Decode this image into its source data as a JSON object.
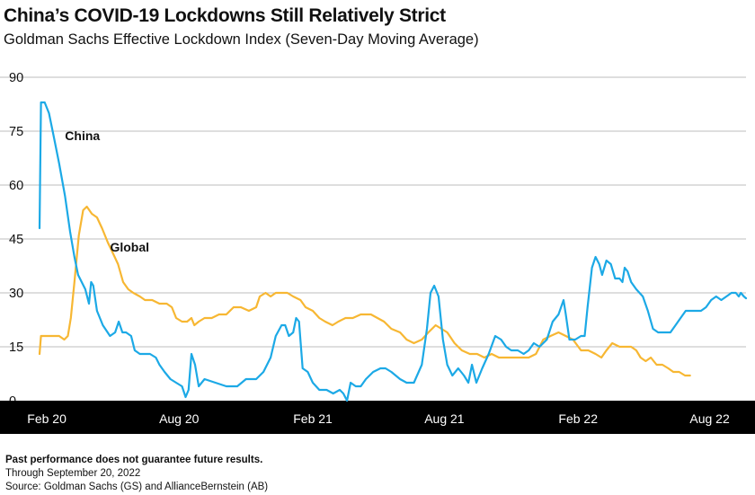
{
  "title": "China’s COVID-19 Lockdowns Still Relatively Strict",
  "subtitle": "Goldman Sachs Effective Lockdown Index (Seven-Day Moving Average)",
  "footer": {
    "disclaimer": "Past performance does not guarantee future results.",
    "through": "Through September 20, 2022",
    "source": "Source: Goldman Sachs (GS) and AllianceBernstein (AB)"
  },
  "colors": {
    "China": "#1ca9e6",
    "Global": "#f7b733",
    "axis_band": "#000000"
  },
  "chart_data": {
    "type": "line",
    "ylim": [
      0,
      90
    ],
    "yticks": [
      0,
      15,
      30,
      45,
      60,
      75,
      90
    ],
    "grid": true,
    "xlim": [
      "2020-01-22",
      "2022-09-20"
    ],
    "xticks": [
      {
        "label": "Feb 20",
        "date": "2020-02-01"
      },
      {
        "label": "Aug 20",
        "date": "2020-08-01"
      },
      {
        "label": "Feb 21",
        "date": "2021-02-01"
      },
      {
        "label": "Aug 21",
        "date": "2021-08-01"
      },
      {
        "label": "Feb 22",
        "date": "2022-02-01"
      },
      {
        "label": "Aug 22",
        "date": "2022-08-01"
      }
    ],
    "series": [
      {
        "name": "China",
        "points": [
          [
            "2020-01-22",
            48
          ],
          [
            "2020-01-24",
            83
          ],
          [
            "2020-01-29",
            83
          ],
          [
            "2020-02-04",
            80
          ],
          [
            "2020-02-10",
            74
          ],
          [
            "2020-02-18",
            66
          ],
          [
            "2020-02-26",
            57
          ],
          [
            "2020-03-04",
            47
          ],
          [
            "2020-03-10",
            40
          ],
          [
            "2020-03-15",
            35
          ],
          [
            "2020-03-20",
            33
          ],
          [
            "2020-03-25",
            31
          ],
          [
            "2020-03-30",
            27
          ],
          [
            "2020-04-02",
            33
          ],
          [
            "2020-04-05",
            32
          ],
          [
            "2020-04-10",
            25
          ],
          [
            "2020-04-18",
            21
          ],
          [
            "2020-04-28",
            18
          ],
          [
            "2020-05-05",
            19
          ],
          [
            "2020-05-10",
            22
          ],
          [
            "2020-05-15",
            19
          ],
          [
            "2020-05-20",
            19
          ],
          [
            "2020-05-27",
            18
          ],
          [
            "2020-06-01",
            14
          ],
          [
            "2020-06-08",
            13
          ],
          [
            "2020-06-16",
            13
          ],
          [
            "2020-06-22",
            13
          ],
          [
            "2020-06-30",
            12
          ],
          [
            "2020-07-05",
            10
          ],
          [
            "2020-07-12",
            8
          ],
          [
            "2020-07-20",
            6
          ],
          [
            "2020-07-28",
            5
          ],
          [
            "2020-08-05",
            4
          ],
          [
            "2020-08-10",
            1
          ],
          [
            "2020-08-14",
            3
          ],
          [
            "2020-08-18",
            13
          ],
          [
            "2020-08-23",
            10
          ],
          [
            "2020-08-28",
            4
          ],
          [
            "2020-09-05",
            6
          ],
          [
            "2020-09-20",
            5
          ],
          [
            "2020-10-05",
            4
          ],
          [
            "2020-10-20",
            4
          ],
          [
            "2020-11-01",
            6
          ],
          [
            "2020-11-15",
            6
          ],
          [
            "2020-11-25",
            8
          ],
          [
            "2020-12-05",
            12
          ],
          [
            "2020-12-12",
            18
          ],
          [
            "2020-12-20",
            21
          ],
          [
            "2020-12-25",
            21
          ],
          [
            "2020-12-30",
            18
          ],
          [
            "2021-01-05",
            19
          ],
          [
            "2021-01-09",
            23
          ],
          [
            "2021-01-13",
            22
          ],
          [
            "2021-01-18",
            9
          ],
          [
            "2021-01-25",
            8
          ],
          [
            "2021-02-01",
            5
          ],
          [
            "2021-02-10",
            3
          ],
          [
            "2021-02-20",
            3
          ],
          [
            "2021-03-01",
            2
          ],
          [
            "2021-03-10",
            3
          ],
          [
            "2021-03-15",
            2
          ],
          [
            "2021-03-20",
            0
          ],
          [
            "2021-03-25",
            5
          ],
          [
            "2021-04-01",
            4
          ],
          [
            "2021-04-08",
            4
          ],
          [
            "2021-04-15",
            6
          ],
          [
            "2021-04-25",
            8
          ],
          [
            "2021-05-05",
            9
          ],
          [
            "2021-05-12",
            9
          ],
          [
            "2021-05-20",
            8
          ],
          [
            "2021-06-01",
            6
          ],
          [
            "2021-06-10",
            5
          ],
          [
            "2021-06-20",
            5
          ],
          [
            "2021-07-01",
            10
          ],
          [
            "2021-07-08",
            20
          ],
          [
            "2021-07-13",
            30
          ],
          [
            "2021-07-18",
            32
          ],
          [
            "2021-07-24",
            29
          ],
          [
            "2021-07-30",
            17
          ],
          [
            "2021-08-05",
            10
          ],
          [
            "2021-08-12",
            7
          ],
          [
            "2021-08-20",
            9
          ],
          [
            "2021-08-28",
            7
          ],
          [
            "2021-09-03",
            5
          ],
          [
            "2021-09-08",
            10
          ],
          [
            "2021-09-14",
            5
          ],
          [
            "2021-09-22",
            9
          ],
          [
            "2021-10-01",
            13
          ],
          [
            "2021-10-10",
            18
          ],
          [
            "2021-10-18",
            17
          ],
          [
            "2021-10-25",
            15
          ],
          [
            "2021-11-01",
            14
          ],
          [
            "2021-11-10",
            14
          ],
          [
            "2021-11-18",
            13
          ],
          [
            "2021-11-25",
            14
          ],
          [
            "2021-12-02",
            16
          ],
          [
            "2021-12-10",
            15
          ],
          [
            "2021-12-20",
            17
          ],
          [
            "2021-12-28",
            22
          ],
          [
            "2022-01-05",
            24
          ],
          [
            "2022-01-12",
            28
          ],
          [
            "2022-01-15",
            24
          ],
          [
            "2022-01-20",
            17
          ],
          [
            "2022-01-28",
            17
          ],
          [
            "2022-02-05",
            18
          ],
          [
            "2022-02-10",
            18
          ],
          [
            "2022-02-14",
            26
          ],
          [
            "2022-02-20",
            37
          ],
          [
            "2022-02-25",
            40
          ],
          [
            "2022-03-02",
            38
          ],
          [
            "2022-03-06",
            35
          ],
          [
            "2022-03-12",
            39
          ],
          [
            "2022-03-18",
            38
          ],
          [
            "2022-03-24",
            34
          ],
          [
            "2022-03-30",
            34
          ],
          [
            "2022-04-03",
            33
          ],
          [
            "2022-04-06",
            37
          ],
          [
            "2022-04-10",
            36
          ],
          [
            "2022-04-15",
            33
          ],
          [
            "2022-04-22",
            31
          ],
          [
            "2022-05-01",
            29
          ],
          [
            "2022-05-08",
            25
          ],
          [
            "2022-05-15",
            20
          ],
          [
            "2022-05-22",
            19
          ],
          [
            "2022-06-01",
            19
          ],
          [
            "2022-06-08",
            19
          ],
          [
            "2022-06-15",
            21
          ],
          [
            "2022-06-22",
            23
          ],
          [
            "2022-06-29",
            25
          ],
          [
            "2022-07-06",
            25
          ],
          [
            "2022-07-13",
            25
          ],
          [
            "2022-07-20",
            25
          ],
          [
            "2022-07-27",
            26
          ],
          [
            "2022-08-03",
            28
          ],
          [
            "2022-08-10",
            29
          ],
          [
            "2022-08-17",
            28
          ],
          [
            "2022-08-24",
            29
          ],
          [
            "2022-08-31",
            30
          ],
          [
            "2022-09-06",
            30
          ],
          [
            "2022-09-10",
            29
          ],
          [
            "2022-09-13",
            30
          ],
          [
            "2022-09-17",
            29
          ],
          [
            "2022-09-20",
            28.5
          ]
        ]
      },
      {
        "name": "Global",
        "points": [
          [
            "2020-01-22",
            13
          ],
          [
            "2020-01-24",
            18
          ],
          [
            "2020-02-01",
            18
          ],
          [
            "2020-02-10",
            18
          ],
          [
            "2020-02-18",
            18
          ],
          [
            "2020-02-25",
            17
          ],
          [
            "2020-03-01",
            18
          ],
          [
            "2020-03-05",
            23
          ],
          [
            "2020-03-10",
            33
          ],
          [
            "2020-03-16",
            46
          ],
          [
            "2020-03-22",
            53
          ],
          [
            "2020-03-27",
            54
          ],
          [
            "2020-04-03",
            52
          ],
          [
            "2020-04-10",
            51
          ],
          [
            "2020-04-17",
            48
          ],
          [
            "2020-04-25",
            44
          ],
          [
            "2020-05-02",
            41
          ],
          [
            "2020-05-09",
            38
          ],
          [
            "2020-05-16",
            33
          ],
          [
            "2020-05-23",
            31
          ],
          [
            "2020-05-30",
            30
          ],
          [
            "2020-06-08",
            29
          ],
          [
            "2020-06-15",
            28
          ],
          [
            "2020-06-25",
            28
          ],
          [
            "2020-07-05",
            27
          ],
          [
            "2020-07-15",
            27
          ],
          [
            "2020-07-22",
            26
          ],
          [
            "2020-07-28",
            23
          ],
          [
            "2020-08-05",
            22
          ],
          [
            "2020-08-12",
            22
          ],
          [
            "2020-08-18",
            23
          ],
          [
            "2020-08-22",
            21
          ],
          [
            "2020-08-28",
            22
          ],
          [
            "2020-09-05",
            23
          ],
          [
            "2020-09-15",
            23
          ],
          [
            "2020-09-25",
            24
          ],
          [
            "2020-10-05",
            24
          ],
          [
            "2020-10-15",
            26
          ],
          [
            "2020-10-25",
            26
          ],
          [
            "2020-11-05",
            25
          ],
          [
            "2020-11-15",
            26
          ],
          [
            "2020-11-20",
            29
          ],
          [
            "2020-11-28",
            30
          ],
          [
            "2020-12-05",
            29
          ],
          [
            "2020-12-12",
            30
          ],
          [
            "2020-12-20",
            30
          ],
          [
            "2020-12-28",
            30
          ],
          [
            "2021-01-05",
            29
          ],
          [
            "2021-01-15",
            28
          ],
          [
            "2021-01-22",
            26
          ],
          [
            "2021-02-01",
            25
          ],
          [
            "2021-02-10",
            23
          ],
          [
            "2021-02-18",
            22
          ],
          [
            "2021-02-28",
            21
          ],
          [
            "2021-03-08",
            22
          ],
          [
            "2021-03-18",
            23
          ],
          [
            "2021-03-28",
            23
          ],
          [
            "2021-04-08",
            24
          ],
          [
            "2021-04-15",
            24
          ],
          [
            "2021-04-22",
            24
          ],
          [
            "2021-05-01",
            23
          ],
          [
            "2021-05-10",
            22
          ],
          [
            "2021-05-20",
            20
          ],
          [
            "2021-06-01",
            19
          ],
          [
            "2021-06-10",
            17
          ],
          [
            "2021-06-20",
            16
          ],
          [
            "2021-07-01",
            17
          ],
          [
            "2021-07-10",
            19
          ],
          [
            "2021-07-20",
            21
          ],
          [
            "2021-07-28",
            20
          ],
          [
            "2021-08-05",
            19
          ],
          [
            "2021-08-15",
            16
          ],
          [
            "2021-08-25",
            14
          ],
          [
            "2021-09-05",
            13
          ],
          [
            "2021-09-15",
            13
          ],
          [
            "2021-09-25",
            12
          ],
          [
            "2021-10-05",
            13
          ],
          [
            "2021-10-15",
            12
          ],
          [
            "2021-10-25",
            12
          ],
          [
            "2021-11-05",
            12
          ],
          [
            "2021-11-15",
            12
          ],
          [
            "2021-11-25",
            12
          ],
          [
            "2021-12-05",
            13
          ],
          [
            "2021-12-15",
            17
          ],
          [
            "2021-12-25",
            18
          ],
          [
            "2022-01-05",
            19
          ],
          [
            "2022-01-15",
            18
          ],
          [
            "2022-01-25",
            17
          ],
          [
            "2022-02-05",
            14
          ],
          [
            "2022-02-15",
            14
          ],
          [
            "2022-02-25",
            13
          ],
          [
            "2022-03-05",
            12
          ],
          [
            "2022-03-12",
            14
          ],
          [
            "2022-03-20",
            16
          ],
          [
            "2022-03-30",
            15
          ],
          [
            "2022-04-08",
            15
          ],
          [
            "2022-04-15",
            15
          ],
          [
            "2022-04-22",
            14
          ],
          [
            "2022-04-28",
            12
          ],
          [
            "2022-05-05",
            11
          ],
          [
            "2022-05-12",
            12
          ],
          [
            "2022-05-20",
            10
          ],
          [
            "2022-05-28",
            10
          ],
          [
            "2022-06-05",
            9
          ],
          [
            "2022-06-12",
            8
          ],
          [
            "2022-06-20",
            8
          ],
          [
            "2022-06-28",
            7
          ],
          [
            "2022-07-05",
            7
          ]
        ]
      }
    ],
    "annotations": [
      {
        "text": "China",
        "series": "China",
        "x": "2020-02-26",
        "y": 72.5
      },
      {
        "text": "Global",
        "series": "Global",
        "x": "2020-04-28",
        "y": 41.5
      }
    ]
  }
}
